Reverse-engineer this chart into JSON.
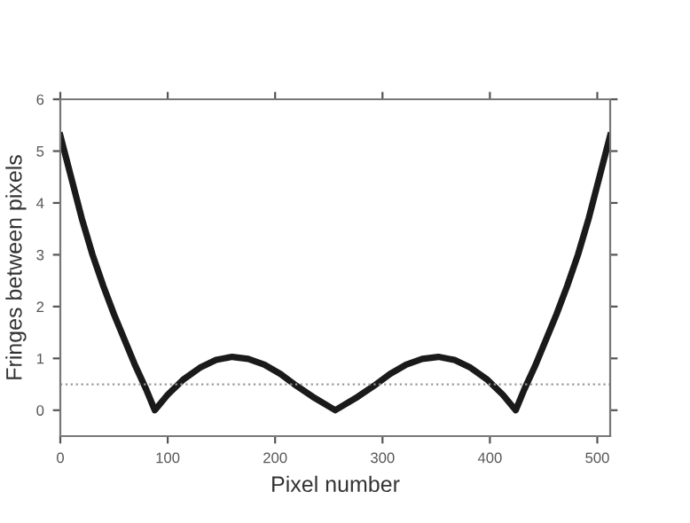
{
  "chart_data": {
    "type": "line",
    "xlabel": "Pixel number",
    "ylabel": "Fringes between pixels",
    "x": [
      0,
      10,
      20,
      30,
      40,
      50,
      60,
      70,
      80,
      88,
      100,
      115,
      130,
      145,
      160,
      175,
      190,
      205,
      220,
      235,
      256,
      277,
      292,
      307,
      322,
      337,
      352,
      367,
      382,
      397,
      412,
      424,
      432,
      442,
      452,
      462,
      472,
      482,
      492,
      502,
      512
    ],
    "series": [
      {
        "color": "#1a1a1a",
        "values": [
          5.3,
          4.5,
          3.7,
          3.0,
          2.4,
          1.85,
          1.35,
          0.85,
          0.4,
          0,
          0.3,
          0.6,
          0.82,
          0.97,
          1.03,
          0.99,
          0.88,
          0.7,
          0.47,
          0.26,
          0,
          0.26,
          0.47,
          0.7,
          0.88,
          0.99,
          1.03,
          0.97,
          0.82,
          0.6,
          0.3,
          0,
          0.4,
          0.85,
          1.35,
          1.85,
          2.4,
          3.0,
          3.7,
          4.5,
          5.3
        ]
      }
    ],
    "xlim": [
      0,
      512
    ],
    "ylim": [
      -0.5,
      6
    ],
    "xticks": [
      0,
      100,
      200,
      300,
      400,
      500
    ],
    "yticks": [
      0,
      1,
      2,
      3,
      4,
      5,
      6
    ],
    "ref_lines": [
      {
        "axis": "y",
        "value": 0.5,
        "color": "#999999",
        "line_style": "dotted"
      }
    ],
    "grid": false,
    "legend": false,
    "marker": "none",
    "line_style": "solid"
  }
}
